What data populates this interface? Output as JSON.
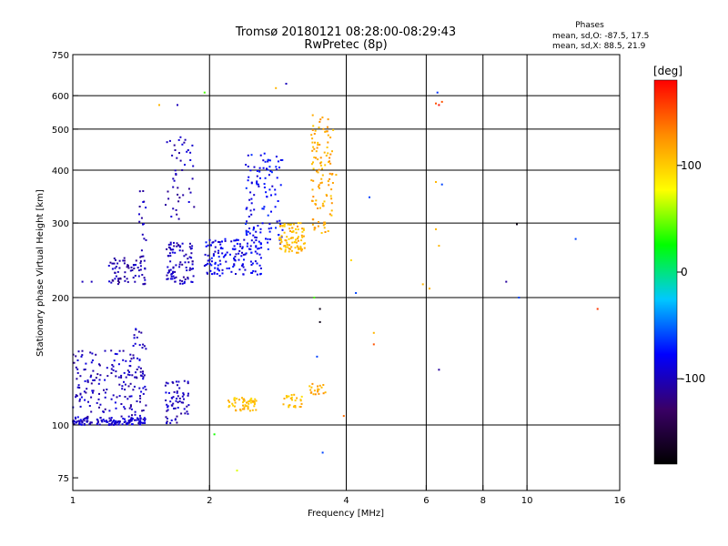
{
  "chart_data": {
    "type": "scatter",
    "title": "Tromsø 20180121 08:28:00-08:29:43",
    "subtitle": "RwPretec (8p)",
    "xlabel": "Frequency [MHz]",
    "ylabel": "Stationary phase Virtual Height [km]",
    "x_scale": "log",
    "y_scale": "log",
    "xlim": [
      1,
      16
    ],
    "ylim": [
      70,
      750
    ],
    "x_ticks": [
      1,
      2,
      4,
      6,
      8,
      10,
      16
    ],
    "x_tick_labels": [
      "1",
      "2",
      "4",
      "6",
      "8",
      "10",
      "16"
    ],
    "x_grid": [
      2,
      4,
      6,
      8,
      10
    ],
    "y_ticks": [
      75,
      100,
      200,
      300,
      400,
      500,
      600,
      750
    ],
    "y_tick_labels": [
      "75",
      "100",
      "200",
      "300",
      "400",
      "500",
      "600",
      "750"
    ],
    "y_grid": [
      100,
      200,
      300,
      400,
      500,
      600
    ],
    "grid": true,
    "stats": {
      "heading": "Phases",
      "line1": "mean, sd,O: -87.5, 17.5",
      "line2": "mean, sd,X: 88.5, 21.9"
    },
    "colorbar": {
      "label": "[deg]",
      "range": [
        -180,
        180
      ],
      "ticks": [
        100,
        0,
        -100
      ],
      "tick_labels": [
        "100",
        "0",
        "-100"
      ],
      "colors": [
        "#000000",
        "#3a0066",
        "#0000ff",
        "#00c8ff",
        "#00ff00",
        "#ffff00",
        "#ff8c00",
        "#ff0000"
      ]
    },
    "clusters": [
      {
        "id": "e-layer-low-ordinary",
        "x": [
          1.0,
          1.45
        ],
        "y": [
          100,
          104
        ],
        "phase": -95,
        "count": 130
      },
      {
        "id": "e-layer-ordinary",
        "x": [
          1.0,
          1.45
        ],
        "y": [
          104,
          150
        ],
        "phase": -100,
        "count": 180
      },
      {
        "id": "e-layer-ordinary-upper",
        "x": [
          1.35,
          1.45
        ],
        "y": [
          150,
          170
        ],
        "phase": -100,
        "count": 14
      },
      {
        "id": "e-layer-ordinary-2",
        "x": [
          1.6,
          1.8
        ],
        "y": [
          100,
          128
        ],
        "phase": -100,
        "count": 65
      },
      {
        "id": "e-layer-extraordinary",
        "x": [
          2.2,
          2.55
        ],
        "y": [
          108,
          116
        ],
        "phase": 105,
        "count": 55
      },
      {
        "id": "e-layer-extraordinary-2",
        "x": [
          2.9,
          3.2
        ],
        "y": [
          110,
          118
        ],
        "phase": 105,
        "count": 28
      },
      {
        "id": "e-layer-extraordinary-3",
        "x": [
          3.3,
          3.6
        ],
        "y": [
          118,
          125
        ],
        "phase": 115,
        "count": 20
      },
      {
        "id": "f-layer-trace-1",
        "x": [
          1.2,
          1.45
        ],
        "y": [
          215,
          250
        ],
        "phase": -105,
        "count": 70
      },
      {
        "id": "f-layer-trace-1-upper",
        "x": [
          1.4,
          1.45
        ],
        "y": [
          250,
          360
        ],
        "phase": -100,
        "count": 16
      },
      {
        "id": "f-layer-trace-2",
        "x": [
          1.6,
          1.85
        ],
        "y": [
          215,
          270
        ],
        "phase": -100,
        "count": 90
      },
      {
        "id": "f-layer-trace-2-upper",
        "x": [
          1.6,
          1.85
        ],
        "y": [
          300,
          480
        ],
        "phase": -100,
        "count": 45
      },
      {
        "id": "f-layer-ordinary-trace",
        "x": [
          1.95,
          2.6
        ],
        "y": [
          225,
          275
        ],
        "phase": -85,
        "count": 140
      },
      {
        "id": "f-layer-ordinary-cusp",
        "x": [
          2.4,
          2.9
        ],
        "y": [
          260,
          440
        ],
        "phase": -80,
        "count": 120
      },
      {
        "id": "f-layer-extraordinary-trace",
        "x": [
          2.85,
          3.25
        ],
        "y": [
          255,
          300
        ],
        "phase": 110,
        "count": 90
      },
      {
        "id": "f-layer-extraordinary-cusp",
        "x": [
          3.35,
          3.75
        ],
        "y": [
          280,
          540
        ],
        "phase": 115,
        "count": 110
      }
    ],
    "scattered_points": [
      {
        "x": 1.55,
        "y": 570,
        "phase": 110
      },
      {
        "x": 1.7,
        "y": 570,
        "phase": -100
      },
      {
        "x": 1.95,
        "y": 610,
        "phase": 40
      },
      {
        "x": 2.8,
        "y": 625,
        "phase": 110
      },
      {
        "x": 2.95,
        "y": 640,
        "phase": -100
      },
      {
        "x": 3.8,
        "y": 390,
        "phase": 110
      },
      {
        "x": 4.1,
        "y": 245,
        "phase": 95
      },
      {
        "x": 4.2,
        "y": 205,
        "phase": -60
      },
      {
        "x": 4.6,
        "y": 165,
        "phase": 110
      },
      {
        "x": 4.6,
        "y": 155,
        "phase": 150
      },
      {
        "x": 6.3,
        "y": 575,
        "phase": 150
      },
      {
        "x": 6.4,
        "y": 570,
        "phase": 175
      },
      {
        "x": 6.5,
        "y": 580,
        "phase": 150
      },
      {
        "x": 6.35,
        "y": 610,
        "phase": -65
      },
      {
        "x": 6.3,
        "y": 375,
        "phase": 110
      },
      {
        "x": 6.5,
        "y": 370,
        "phase": -60
      },
      {
        "x": 6.4,
        "y": 265,
        "phase": 110
      },
      {
        "x": 6.3,
        "y": 290,
        "phase": 110
      },
      {
        "x": 6.4,
        "y": 135,
        "phase": -110
      },
      {
        "x": 9.0,
        "y": 218,
        "phase": -110
      },
      {
        "x": 9.5,
        "y": 298,
        "phase": -170
      },
      {
        "x": 9.6,
        "y": 200,
        "phase": -60
      },
      {
        "x": 12.8,
        "y": 275,
        "phase": -60
      },
      {
        "x": 14.3,
        "y": 188,
        "phase": 160
      },
      {
        "x": 3.55,
        "y": 86,
        "phase": -60
      },
      {
        "x": 2.05,
        "y": 95,
        "phase": 30
      },
      {
        "x": 2.3,
        "y": 78,
        "phase": 70
      },
      {
        "x": 3.4,
        "y": 200,
        "phase": 40
      },
      {
        "x": 3.45,
        "y": 145,
        "phase": -60
      },
      {
        "x": 3.5,
        "y": 175,
        "phase": -170
      },
      {
        "x": 3.95,
        "y": 105,
        "phase": 140
      },
      {
        "x": 3.5,
        "y": 188,
        "phase": -170
      },
      {
        "x": 4.5,
        "y": 345,
        "phase": -60
      },
      {
        "x": 1.1,
        "y": 218,
        "phase": -100
      },
      {
        "x": 1.05,
        "y": 218,
        "phase": -100
      },
      {
        "x": 5.9,
        "y": 215,
        "phase": 110
      },
      {
        "x": 6.1,
        "y": 210,
        "phase": 110
      }
    ]
  }
}
